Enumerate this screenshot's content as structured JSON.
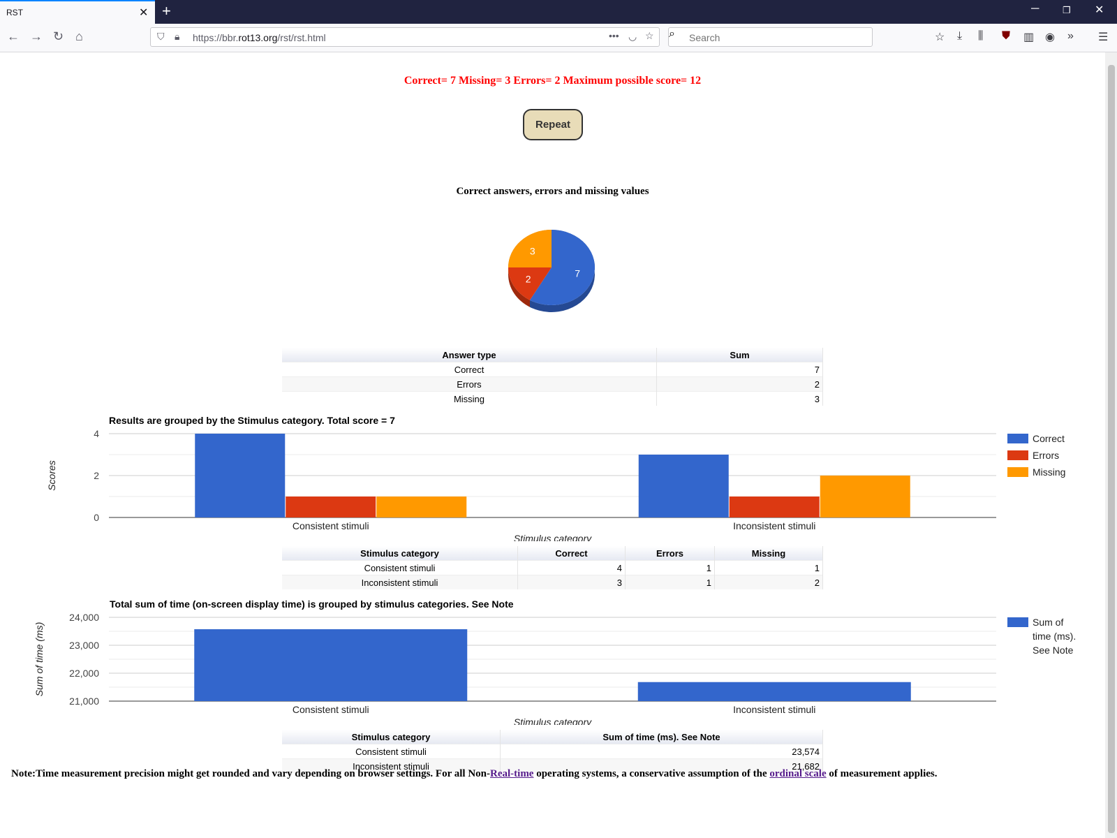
{
  "browser": {
    "tab_title": "RST",
    "url_prefix": "https://bbr.",
    "url_domain": "rot13.org",
    "url_path": "/rst/rst.html",
    "search_placeholder": "Search"
  },
  "page": {
    "score_line": "Correct= 7 Missing= 3 Errors= 2 Maximum possible score= 12",
    "repeat_label": "Repeat",
    "note": {
      "prefix": "Note:Time measurement precision might get rounded and vary depending on browser settings. For all Non-",
      "link1": "Real-time",
      "middle": " operating systems, a conservative assumption of the ",
      "link2": "ordinal scale",
      "suffix": " of measurement applies."
    }
  },
  "tables": {
    "answers": {
      "headers": [
        "Answer type",
        "Sum"
      ],
      "rows": [
        [
          "Correct",
          "7"
        ],
        [
          "Errors",
          "2"
        ],
        [
          "Missing",
          "3"
        ]
      ]
    },
    "stimulus": {
      "headers": [
        "Stimulus category",
        "Correct",
        "Errors",
        "Missing"
      ],
      "rows": [
        [
          "Consistent stimuli",
          "4",
          "1",
          "1"
        ],
        [
          "Inconsistent stimuli",
          "3",
          "1",
          "2"
        ]
      ]
    },
    "time": {
      "headers": [
        "Stimulus category",
        "Sum of time (ms). See Note"
      ],
      "rows": [
        [
          "Consistent stimuli",
          "23,574"
        ],
        [
          "Inconsistent stimuli",
          "21,682"
        ]
      ]
    }
  },
  "chart_data": [
    {
      "type": "pie",
      "title": "Correct answers, errors and missing values",
      "labels": [
        "Correct",
        "Errors",
        "Missing"
      ],
      "values": [
        7,
        2,
        3
      ],
      "colors": [
        "#3366cc",
        "#dc3912",
        "#ff9900"
      ]
    },
    {
      "type": "bar",
      "title": "Results are grouped by the Stimulus category. Total score = 7",
      "xlabel": "Stimulus category",
      "ylabel": "Scores",
      "categories": [
        "Consistent stimuli",
        "Inconsistent stimuli"
      ],
      "series": [
        {
          "name": "Correct",
          "values": [
            4,
            3
          ],
          "color": "#3366cc"
        },
        {
          "name": "Errors",
          "values": [
            1,
            1
          ],
          "color": "#dc3912"
        },
        {
          "name": "Missing",
          "values": [
            1,
            2
          ],
          "color": "#ff9900"
        }
      ],
      "ylim": [
        0,
        4
      ],
      "yticks": [
        "0",
        "2",
        "4"
      ],
      "legend": "right"
    },
    {
      "type": "bar",
      "title": "Total sum of time (on-screen display time) is grouped by stimulus categories. See Note",
      "xlabel": "Stimulus category",
      "ylabel": "Sum of time (ms)",
      "categories": [
        "Consistent stimuli",
        "Inconsistent stimuli"
      ],
      "series": [
        {
          "name": "Sum of time (ms). See Note",
          "values": [
            23574,
            21682
          ],
          "color": "#3366cc"
        }
      ],
      "legend_lines": [
        "Sum of",
        "time (ms).",
        "See Note"
      ],
      "ylim": [
        21000,
        24000
      ],
      "yticks": [
        "21,000",
        "22,000",
        "23,000",
        "24,000"
      ],
      "legend": "right"
    }
  ]
}
